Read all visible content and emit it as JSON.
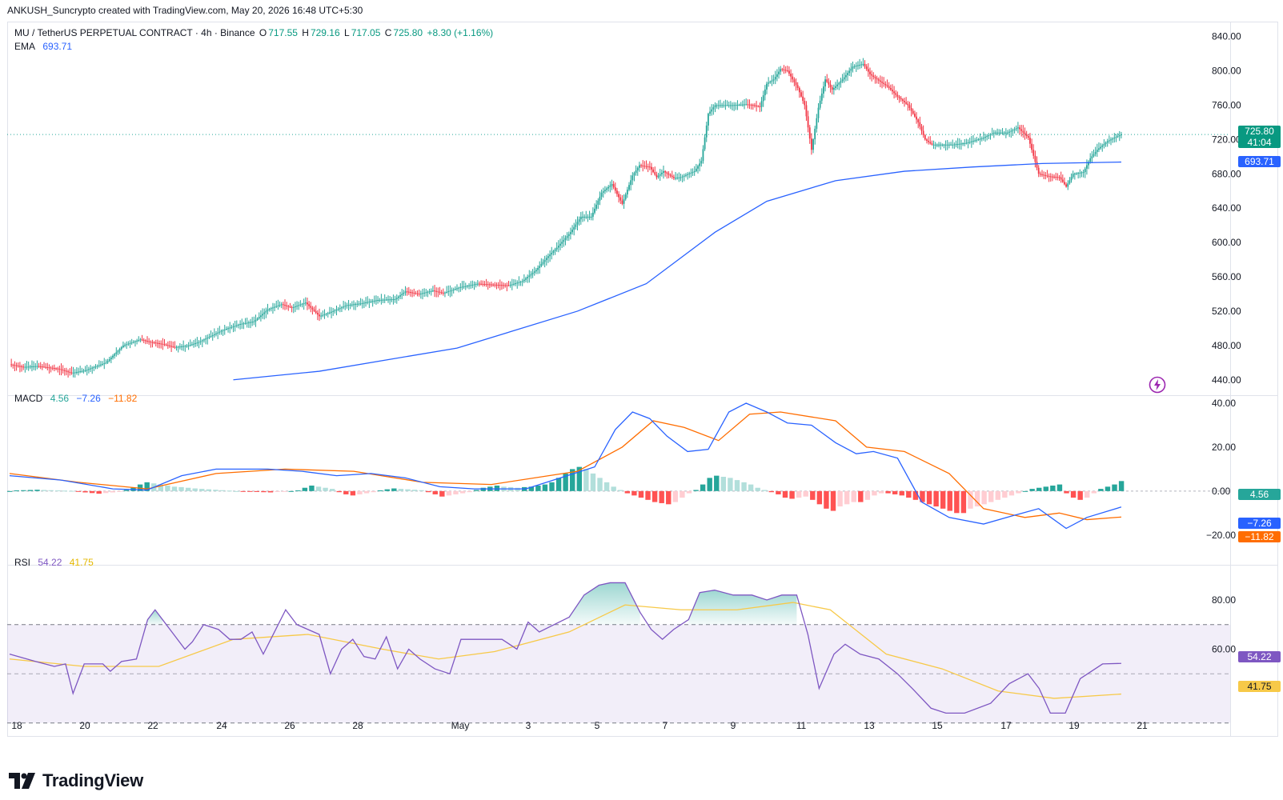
{
  "byline": "ANKUSH_Suncrypto created with TradingView.com, May 20, 2026 16:48 UTC+5:30",
  "legend": {
    "symbol": "MU / TetherUS PERPETUAL CONTRACT · 4h · Binance",
    "o_label": "O",
    "o": "717.55",
    "h_label": "H",
    "h": "729.16",
    "l_label": "L",
    "l": "717.05",
    "c_label": "C",
    "c": "725.80",
    "change": "+8.30 (+1.16%)",
    "ema_label": "EMA",
    "ema_value": "693.71",
    "macd_label": "MACD",
    "macd_hist": "4.56",
    "macd_line": "−7.26",
    "macd_signal": "−11.82",
    "rsi_label": "RSI",
    "rsi_value": "54.22",
    "rsi_ma": "41.75"
  },
  "price_tag": {
    "value": "725.80",
    "countdown": "41:04"
  },
  "ema_tag": "693.71",
  "macd_tags": {
    "hist": "4.56",
    "line": "−7.26",
    "signal": "−11.82"
  },
  "rsi_tags": {
    "rsi": "54.22",
    "ma": "41.75"
  },
  "brand": "TradingView",
  "colors": {
    "up": "#26a69a",
    "down": "#f23645",
    "ema": "#2962ff",
    "macd": "#2962ff",
    "signal": "#ff6d00",
    "rsi": "#7e57c2",
    "rsi_ma": "#f7c948"
  },
  "chart_data": [
    {
      "type": "candlestick",
      "title": "MU / TetherUS PERPETUAL CONTRACT · 4h · Binance",
      "x_ticks": [
        "18",
        "20",
        "22",
        "24",
        "26",
        "28",
        "May",
        "3",
        "5",
        "7",
        "9",
        "11",
        "13",
        "15",
        "17",
        "19",
        "21"
      ],
      "y_ticks": [
        "840.00",
        "800.00",
        "760.00",
        "720.00",
        "680.00",
        "640.00",
        "600.00",
        "560.00",
        "520.00",
        "480.00",
        "440.00"
      ],
      "ylim": [
        437,
        848
      ],
      "close_path": [
        [
          0,
          458
        ],
        [
          8,
          455
        ],
        [
          16,
          456
        ],
        [
          28,
          453
        ],
        [
          36,
          448
        ],
        [
          44,
          451
        ],
        [
          56,
          460
        ],
        [
          66,
          480
        ],
        [
          76,
          487
        ],
        [
          82,
          484
        ],
        [
          88,
          482
        ],
        [
          96,
          478
        ],
        [
          104,
          480
        ],
        [
          110,
          484
        ],
        [
          118,
          492
        ],
        [
          124,
          498
        ],
        [
          134,
          505
        ],
        [
          142,
          508
        ],
        [
          150,
          522
        ],
        [
          158,
          528
        ],
        [
          164,
          524
        ],
        [
          172,
          530
        ],
        [
          180,
          514
        ],
        [
          188,
          520
        ],
        [
          196,
          527
        ],
        [
          204,
          529
        ],
        [
          214,
          533
        ],
        [
          224,
          534
        ],
        [
          230,
          543
        ],
        [
          238,
          540
        ],
        [
          246,
          544
        ],
        [
          252,
          541
        ],
        [
          262,
          548
        ],
        [
          272,
          552
        ],
        [
          280,
          551
        ],
        [
          290,
          550
        ],
        [
          298,
          555
        ],
        [
          306,
          568
        ],
        [
          312,
          582
        ],
        [
          318,
          594
        ],
        [
          326,
          612
        ],
        [
          332,
          630
        ],
        [
          338,
          630
        ],
        [
          344,
          658
        ],
        [
          350,
          668
        ],
        [
          356,
          645
        ],
        [
          362,
          678
        ],
        [
          366,
          690
        ],
        [
          372,
          688
        ],
        [
          376,
          676
        ],
        [
          380,
          683
        ],
        [
          386,
          675
        ],
        [
          390,
          676
        ],
        [
          398,
          683
        ],
        [
          402,
          695
        ],
        [
          406,
          750
        ],
        [
          410,
          760
        ],
        [
          414,
          760
        ],
        [
          420,
          760
        ],
        [
          428,
          761
        ],
        [
          432,
          760
        ],
        [
          436,
          758
        ],
        [
          440,
          785
        ],
        [
          444,
          790
        ],
        [
          448,
          802
        ],
        [
          452,
          800
        ],
        [
          458,
          780
        ],
        [
          462,
          760
        ],
        [
          466,
          708
        ],
        [
          470,
          757
        ],
        [
          474,
          790
        ],
        [
          478,
          778
        ],
        [
          484,
          790
        ],
        [
          490,
          805
        ],
        [
          496,
          808
        ],
        [
          500,
          796
        ],
        [
          504,
          790
        ],
        [
          510,
          782
        ],
        [
          516,
          770
        ],
        [
          522,
          760
        ],
        [
          528,
          740
        ],
        [
          532,
          720
        ],
        [
          536,
          714
        ],
        [
          548,
          714
        ],
        [
          556,
          716
        ],
        [
          566,
          722
        ],
        [
          572,
          728
        ],
        [
          580,
          728
        ],
        [
          586,
          734
        ],
        [
          592,
          722
        ],
        [
          598,
          680
        ],
        [
          604,
          677
        ],
        [
          610,
          676
        ],
        [
          614,
          665
        ],
        [
          618,
          680
        ],
        [
          624,
          682
        ],
        [
          628,
          698
        ],
        [
          632,
          708
        ],
        [
          638,
          718
        ],
        [
          642,
          722
        ],
        [
          646,
          725.8
        ]
      ],
      "ema_points": [
        [
          130,
          440
        ],
        [
          180,
          450
        ],
        [
          260,
          477
        ],
        [
          330,
          520
        ],
        [
          370,
          552
        ],
        [
          410,
          612
        ],
        [
          440,
          648
        ],
        [
          480,
          672
        ],
        [
          520,
          683
        ],
        [
          560,
          688
        ],
        [
          600,
          692
        ],
        [
          646,
          693.71
        ]
      ],
      "last_price": 725.8,
      "ema_last": 693.71
    },
    {
      "type": "line",
      "title": "MACD",
      "y_ticks": [
        "40.00",
        "20.00",
        "0.00",
        "−20.00"
      ],
      "ylim": [
        -23,
        40
      ],
      "macd_points": [
        [
          0,
          7
        ],
        [
          30,
          5
        ],
        [
          60,
          1
        ],
        [
          80,
          0.5
        ],
        [
          100,
          7
        ],
        [
          120,
          10
        ],
        [
          150,
          10
        ],
        [
          170,
          9
        ],
        [
          190,
          7
        ],
        [
          210,
          8
        ],
        [
          230,
          6
        ],
        [
          250,
          2
        ],
        [
          270,
          1
        ],
        [
          300,
          1
        ],
        [
          320,
          6
        ],
        [
          340,
          11
        ],
        [
          352,
          28
        ],
        [
          362,
          36
        ],
        [
          372,
          33
        ],
        [
          382,
          25
        ],
        [
          394,
          18
        ],
        [
          406,
          19
        ],
        [
          418,
          36
        ],
        [
          428,
          40
        ],
        [
          440,
          36
        ],
        [
          452,
          31
        ],
        [
          466,
          30
        ],
        [
          480,
          22
        ],
        [
          492,
          17
        ],
        [
          502,
          18
        ],
        [
          516,
          15
        ],
        [
          530,
          -5
        ],
        [
          546,
          -12
        ],
        [
          566,
          -15
        ],
        [
          584,
          -11
        ],
        [
          598,
          -8
        ],
        [
          614,
          -17
        ],
        [
          626,
          -12
        ],
        [
          646,
          -7.26
        ]
      ],
      "signal_points": [
        [
          0,
          8
        ],
        [
          40,
          4
        ],
        [
          80,
          1
        ],
        [
          120,
          8
        ],
        [
          160,
          10
        ],
        [
          200,
          9
        ],
        [
          240,
          4
        ],
        [
          280,
          3
        ],
        [
          330,
          9
        ],
        [
          356,
          20
        ],
        [
          374,
          32
        ],
        [
          392,
          29
        ],
        [
          412,
          23
        ],
        [
          430,
          35
        ],
        [
          448,
          36
        ],
        [
          480,
          32
        ],
        [
          498,
          20
        ],
        [
          520,
          18
        ],
        [
          546,
          8
        ],
        [
          566,
          -8
        ],
        [
          590,
          -12
        ],
        [
          610,
          -10
        ],
        [
          626,
          -13
        ],
        [
          646,
          -11.82
        ]
      ],
      "hist": [
        0,
        0.3,
        0.4,
        0.5,
        0.6,
        0.5,
        0.4,
        0.3,
        0.2,
        0.1,
        -0.3,
        -0.6,
        -0.9,
        -1.2,
        -0.9,
        -0.6,
        -0.3,
        0.5,
        1.5,
        3,
        4,
        3.5,
        3,
        2.5,
        2,
        1.8,
        1.5,
        1.2,
        1,
        0.8,
        0.6,
        0.4,
        0.2,
        0,
        -0.2,
        -0.3,
        -0.4,
        -0.5,
        -0.6,
        -0.4,
        -0.2,
        0,
        0.3,
        1.5,
        2.5,
        2,
        1.5,
        1,
        -0.5,
        -1.5,
        -2,
        -1.5,
        -1,
        -0.5,
        0.3,
        0.8,
        1.2,
        1,
        0.8,
        0.6,
        0.4,
        -0.5,
        -1.5,
        -2.5,
        -2,
        -1.5,
        -1,
        -0.5,
        0.5,
        1.5,
        2,
        2.5,
        2,
        1.8,
        1.5,
        1.8,
        2,
        2.5,
        3,
        4,
        6,
        8,
        10,
        11,
        10,
        8,
        6,
        4,
        2,
        0.5,
        -1,
        -2,
        -3,
        -4,
        -5,
        -5.5,
        -6,
        -5,
        -3,
        -1,
        0.5,
        3,
        6,
        7,
        6.5,
        6,
        5,
        4,
        3,
        1.5,
        0.5,
        -0.5,
        -1.5,
        -3,
        -3.5,
        -3,
        -2.5,
        -4,
        -6,
        -8,
        -9,
        -7,
        -6,
        -5,
        -5,
        -4,
        -2,
        -1,
        -1,
        -1.5,
        -2,
        -3,
        -4,
        -5,
        -6,
        -7,
        -8,
        -9,
        -10,
        -10,
        -8,
        -7,
        -6,
        -5,
        -4,
        -3,
        -2,
        -1,
        0,
        1,
        1.5,
        2,
        2.5,
        3,
        -1,
        -3,
        -4,
        -3,
        -1,
        1,
        2,
        3,
        4.56
      ]
    },
    {
      "type": "line",
      "title": "RSI",
      "y_ticks": [
        "80.00",
        "60.00"
      ],
      "ylim": [
        26,
        93
      ],
      "band": [
        30,
        70
      ],
      "rsi_points": [
        [
          0,
          58
        ],
        [
          14,
          55
        ],
        [
          24,
          53
        ],
        [
          30,
          54
        ],
        [
          34,
          42
        ],
        [
          40,
          54
        ],
        [
          50,
          54
        ],
        [
          54,
          51
        ],
        [
          60,
          55
        ],
        [
          68,
          56
        ],
        [
          74,
          72
        ],
        [
          78,
          76
        ],
        [
          82,
          72
        ],
        [
          88,
          66
        ],
        [
          94,
          60
        ],
        [
          98,
          63
        ],
        [
          104,
          70
        ],
        [
          112,
          68
        ],
        [
          118,
          64
        ],
        [
          124,
          64
        ],
        [
          130,
          67
        ],
        [
          136,
          58
        ],
        [
          142,
          67
        ],
        [
          148,
          76
        ],
        [
          154,
          70
        ],
        [
          160,
          68
        ],
        [
          166,
          66
        ],
        [
          172,
          50
        ],
        [
          178,
          60
        ],
        [
          184,
          64
        ],
        [
          190,
          57
        ],
        [
          196,
          56
        ],
        [
          202,
          65
        ],
        [
          208,
          52
        ],
        [
          214,
          60
        ],
        [
          220,
          56
        ],
        [
          228,
          52
        ],
        [
          236,
          50
        ],
        [
          242,
          64
        ],
        [
          252,
          64
        ],
        [
          264,
          64
        ],
        [
          272,
          60
        ],
        [
          278,
          71
        ],
        [
          284,
          67
        ],
        [
          292,
          70
        ],
        [
          300,
          73
        ],
        [
          308,
          82
        ],
        [
          316,
          86
        ],
        [
          322,
          87
        ],
        [
          330,
          87
        ],
        [
          338,
          75
        ],
        [
          344,
          68
        ],
        [
          350,
          64
        ],
        [
          356,
          68
        ],
        [
          364,
          72
        ],
        [
          370,
          83
        ],
        [
          378,
          84
        ],
        [
          388,
          82
        ],
        [
          398,
          82
        ],
        [
          406,
          80
        ],
        [
          414,
          82
        ],
        [
          422,
          82
        ],
        [
          428,
          66
        ],
        [
          434,
          44
        ],
        [
          442,
          58
        ],
        [
          448,
          62
        ],
        [
          456,
          58
        ],
        [
          466,
          56
        ],
        [
          476,
          50
        ],
        [
          484,
          44
        ],
        [
          494,
          36
        ],
        [
          502,
          34
        ],
        [
          512,
          34
        ],
        [
          526,
          38
        ],
        [
          536,
          46
        ],
        [
          546,
          50
        ],
        [
          552,
          44
        ],
        [
          558,
          34
        ],
        [
          566,
          34
        ],
        [
          574,
          48
        ],
        [
          586,
          54
        ],
        [
          596,
          54.22
        ]
      ],
      "rsi_ma_points": [
        [
          0,
          56
        ],
        [
          40,
          53
        ],
        [
          80,
          53
        ],
        [
          120,
          64
        ],
        [
          160,
          66
        ],
        [
          200,
          60
        ],
        [
          230,
          56
        ],
        [
          260,
          59
        ],
        [
          300,
          67
        ],
        [
          330,
          78
        ],
        [
          360,
          76
        ],
        [
          390,
          76
        ],
        [
          420,
          79
        ],
        [
          440,
          76
        ],
        [
          470,
          58
        ],
        [
          500,
          52
        ],
        [
          530,
          43
        ],
        [
          560,
          40
        ],
        [
          596,
          41.75
        ]
      ]
    }
  ]
}
